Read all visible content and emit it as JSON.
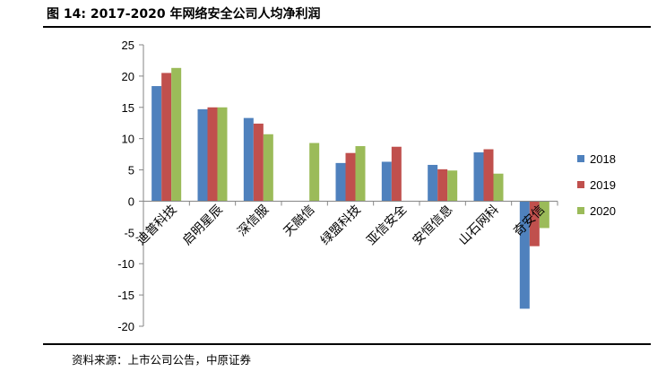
{
  "figure": {
    "title": "图 14:  2017-2020 年网络安全公司人均净利润",
    "source": "资料来源：上市公司公告，中原证券"
  },
  "chart_data": {
    "type": "bar",
    "title": "",
    "xlabel": "",
    "ylabel": "",
    "ylim": [
      -20,
      25
    ],
    "yticks": [
      25,
      20,
      15,
      10,
      5,
      0,
      -5,
      -10,
      -15,
      -20
    ],
    "grid": false,
    "legend_position": "right",
    "categories": [
      "迪普科技",
      "启明星辰",
      "深信服",
      "天融信",
      "绿盟科技",
      "亚信安全",
      "安恒信息",
      "山石网科",
      "奇安信"
    ],
    "series": [
      {
        "name": "2018",
        "color": "#4f81bd",
        "values": [
          18.4,
          14.7,
          13.3,
          null,
          6.1,
          6.3,
          5.8,
          7.8,
          -17.2
        ]
      },
      {
        "name": "2019",
        "color": "#c0504d",
        "values": [
          20.5,
          15.0,
          12.4,
          null,
          7.7,
          8.7,
          5.1,
          8.3,
          -7.2
        ]
      },
      {
        "name": "2020",
        "color": "#9bbb59",
        "values": [
          21.3,
          15.0,
          10.7,
          9.3,
          8.8,
          null,
          4.9,
          4.4,
          -4.3
        ]
      }
    ]
  }
}
